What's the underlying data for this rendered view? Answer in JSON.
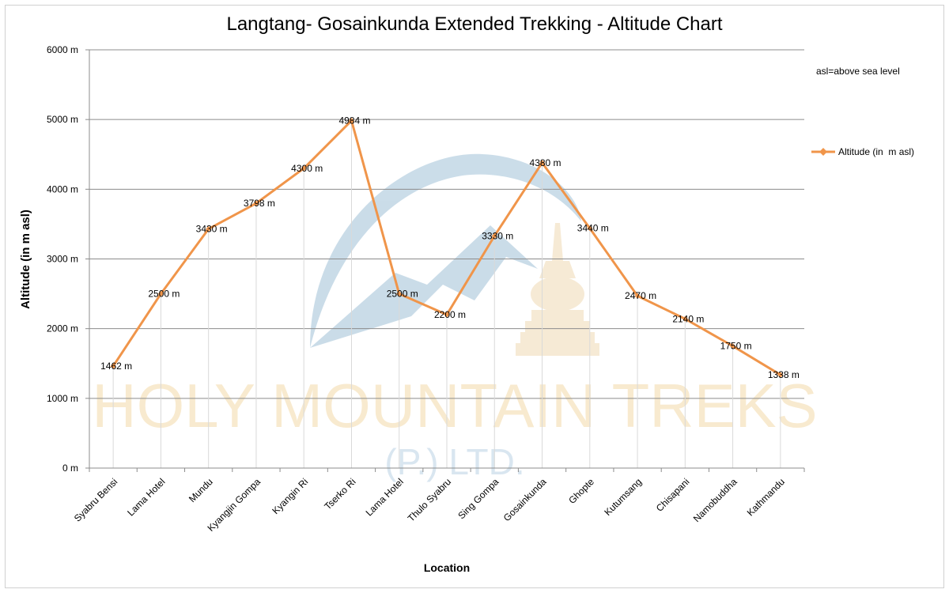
{
  "chart_data": {
    "type": "line",
    "title": "Langtang- Gosainkunda Extended Trekking - Altitude Chart",
    "xlabel": "Location",
    "ylabel": "Altitude (in m asl)",
    "note": "asl=above sea level",
    "ylim": [
      0,
      6000
    ],
    "y_ticks": [
      0,
      1000,
      2000,
      3000,
      4000,
      5000,
      6000
    ],
    "y_tick_labels": [
      "0 m",
      "1000 m",
      "2000 m",
      "3000 m",
      "4000 m",
      "5000 m",
      "6000 m"
    ],
    "grid": true,
    "legend_position": "right",
    "categories": [
      "Syabru Bensi",
      "Lama Hotel",
      "Mundu",
      "Kyangjin Gompa",
      "Kyangin Ri",
      "Tserko Ri",
      "Lama Hotel",
      "Thulo Syabru",
      "Sing Gompa",
      "Gosainkunda",
      "Ghopte",
      "Kutumsang",
      "Chisapani",
      "Namobuddha",
      "Kathmandu"
    ],
    "series": [
      {
        "name": "Altitude (in  m asl)",
        "color": "#f0954a",
        "values": [
          1462,
          2500,
          3430,
          3798,
          4300,
          4984,
          2500,
          2200,
          3330,
          4380,
          3440,
          2470,
          2140,
          1750,
          1338
        ],
        "data_labels": [
          "1462 m",
          "2500 m",
          "3430 m",
          "3798 m",
          "4300 m",
          "4984 m",
          "2500 m",
          "2200 m",
          "3330 m",
          "4380 m",
          "3440 m",
          "2470 m",
          "2140 m",
          "1750 m",
          "1338 m"
        ]
      }
    ]
  },
  "watermark": {
    "line1": "HOLY MOUNTAIN TREKS",
    "line2": "(P.) LTD.",
    "color_text": "#f3d9a8",
    "color_logo": "#6b9ec0"
  }
}
